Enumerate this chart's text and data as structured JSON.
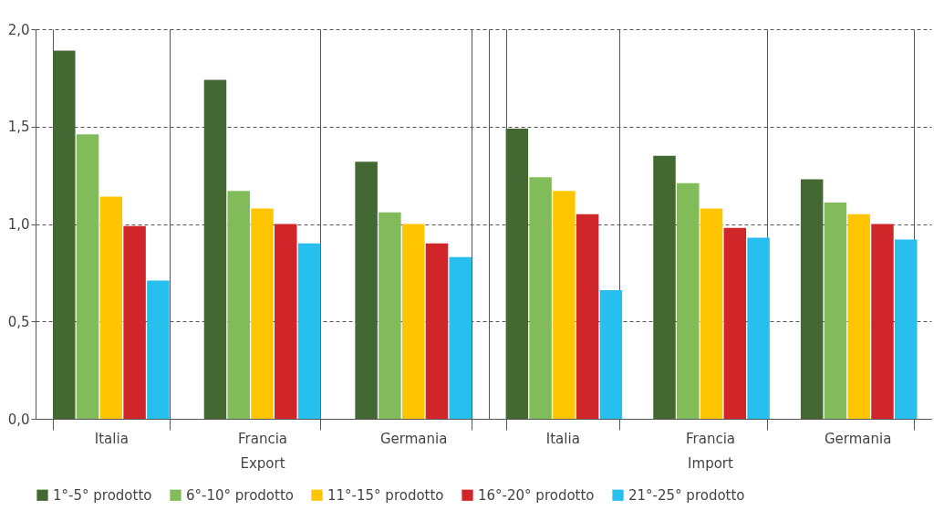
{
  "chart_data": [
    {
      "type": "bar",
      "categories": [
        "Italia",
        "Francia",
        "Germania"
      ],
      "xlabel": "Export",
      "ylim": [
        0,
        2
      ],
      "yticks": [
        {
          "value": 0,
          "label": "0,0"
        },
        {
          "value": 0.5,
          "label": "0,5"
        },
        {
          "value": 1,
          "label": "1,0"
        },
        {
          "value": 1.5,
          "label": "1,5"
        },
        {
          "value": 2,
          "label": "2,0"
        }
      ],
      "grid": true,
      "legend": "bottom",
      "series": [
        {
          "name": "1°-5° prodotto",
          "color": "#436831",
          "values": [
            1.89,
            1.74,
            1.32
          ]
        },
        {
          "name": "6°-10° prodotto",
          "color": "#82bc5a",
          "values": [
            1.46,
            1.17,
            1.06
          ]
        },
        {
          "name": "11°-15° prodotto",
          "color": "#ffc600",
          "values": [
            1.14,
            1.08,
            1.0
          ]
        },
        {
          "name": "16°-20° prodotto",
          "color": "#d0262a",
          "values": [
            0.99,
            1.0,
            0.9
          ]
        },
        {
          "name": "21°-25° prodotto",
          "color": "#27bfee",
          "values": [
            0.71,
            0.9,
            0.83
          ]
        }
      ]
    },
    {
      "type": "bar",
      "categories": [
        "Italia",
        "Francia",
        "Germania"
      ],
      "xlabel": "Import",
      "ylim": [
        0,
        2
      ],
      "yticks": [
        0,
        0.5,
        1,
        1.5,
        2
      ],
      "grid": true,
      "legend": "bottom",
      "tick_labels": "x",
      "series": [
        {
          "name": "1°-5° prodotto",
          "color": "#436831",
          "values": [
            1.49,
            1.35,
            1.23
          ]
        },
        {
          "name": "6°-10° prodotto",
          "color": "#82bc5a",
          "values": [
            1.24,
            1.21,
            1.11
          ]
        },
        {
          "name": "11°-15° prodotto",
          "color": "#ffc600",
          "values": [
            1.17,
            1.08,
            1.05
          ]
        },
        {
          "name": "16°-20° prodotto",
          "color": "#d0262a",
          "values": [
            1.05,
            0.98,
            1.0
          ]
        },
        {
          "name": "21°-25° prodotto",
          "color": "#27bfee",
          "values": [
            0.66,
            0.93,
            0.92
          ]
        }
      ]
    }
  ]
}
